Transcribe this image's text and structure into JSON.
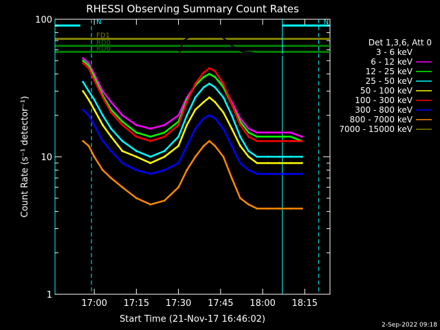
{
  "chart_data": {
    "type": "line",
    "title": "RHESSI Observing Summary Count Rates",
    "xlabel": "Start Time (21-Nov-17 16:46:02)",
    "ylabel": "Count Rate (s⁻¹ detector⁻¹)",
    "yscale": "log",
    "ylim": [
      1,
      100
    ],
    "xlim_minutes": [
      -14,
      84
    ],
    "x_ticks": [
      {
        "t": 0,
        "label": "17:00"
      },
      {
        "t": 15,
        "label": "17:15"
      },
      {
        "t": 30,
        "label": "17:30"
      },
      {
        "t": 45,
        "label": "17:45"
      },
      {
        "t": 60,
        "label": "18:00"
      },
      {
        "t": 75,
        "label": "18:15"
      }
    ],
    "y_ticks": [
      {
        "v": 1,
        "label": "1"
      },
      {
        "v": 10,
        "label": "10"
      },
      {
        "v": 100,
        "label": "100"
      }
    ],
    "timestamp": "2-Sep-2022 09:18",
    "legend_header": "Det 1,3,6, Att 0",
    "legend_position": "right",
    "series": [
      {
        "name": "3 - 6 keV",
        "color": "#000000",
        "t": [
          -4,
          -2,
          0,
          3,
          6,
          10,
          15,
          20,
          25,
          30,
          30.5,
          32,
          35,
          38,
          41,
          44,
          47,
          50,
          53,
          56,
          60,
          65,
          70,
          74
        ],
        "values": [
          45,
          42,
          38,
          30,
          30,
          28,
          27,
          27,
          27,
          28,
          60,
          70,
          78,
          82,
          82,
          80,
          70,
          62,
          58,
          57,
          55,
          55,
          55,
          55
        ]
      },
      {
        "name": "6 - 12 keV",
        "color": "#ff00ff",
        "t": [
          -4,
          -2,
          0,
          3,
          6,
          10,
          15,
          20,
          25,
          30,
          33,
          36,
          39,
          41,
          43,
          46,
          49,
          52,
          55,
          58,
          62,
          66,
          70,
          74
        ],
        "values": [
          52,
          48,
          40,
          30,
          25,
          20,
          17,
          16,
          17,
          20,
          27,
          33,
          38,
          40,
          38,
          33,
          25,
          19,
          16,
          15,
          15,
          15,
          15,
          14
        ]
      },
      {
        "name": "12 - 25 keV",
        "color": "#00ff00",
        "t": [
          -4,
          -2,
          0,
          3,
          6,
          10,
          15,
          20,
          25,
          30,
          33,
          36,
          39,
          41,
          43,
          46,
          49,
          52,
          55,
          58,
          62,
          66,
          70,
          74
        ],
        "values": [
          50,
          46,
          38,
          28,
          22,
          18,
          15,
          14,
          15,
          18,
          26,
          33,
          38,
          40,
          38,
          32,
          24,
          18,
          15,
          14,
          14,
          14,
          14,
          13
        ]
      },
      {
        "name": "25 - 50 keV",
        "color": "#00ffff",
        "t": [
          -4,
          -2,
          0,
          3,
          6,
          10,
          15,
          20,
          25,
          30,
          33,
          36,
          39,
          41,
          43,
          46,
          49,
          52,
          55,
          58,
          62,
          66,
          70,
          74
        ],
        "values": [
          35,
          30,
          26,
          20,
          16,
          13,
          11,
          10,
          11,
          14,
          20,
          27,
          32,
          34,
          32,
          27,
          20,
          14,
          11,
          10,
          10,
          10,
          10,
          10
        ]
      },
      {
        "name": "50 - 100 keV",
        "color": "#ffff00",
        "t": [
          -4,
          -2,
          0,
          3,
          6,
          10,
          15,
          20,
          25,
          30,
          33,
          36,
          39,
          41,
          43,
          46,
          49,
          52,
          55,
          58,
          62,
          66,
          70,
          74
        ],
        "values": [
          30,
          26,
          22,
          17,
          14,
          11,
          10,
          9,
          10,
          12,
          17,
          22,
          25,
          27,
          25,
          21,
          16,
          12,
          10,
          9,
          9,
          9,
          9,
          9
        ]
      },
      {
        "name": "100 - 300 keV",
        "color": "#ff0000",
        "t": [
          -4,
          -2,
          0,
          3,
          6,
          10,
          15,
          20,
          25,
          30,
          33,
          36,
          39,
          41,
          43,
          46,
          49,
          52,
          55,
          58,
          62,
          66,
          70,
          74
        ],
        "values": [
          48,
          44,
          36,
          27,
          21,
          17,
          14,
          13,
          14,
          17,
          25,
          34,
          41,
          44,
          42,
          34,
          24,
          17,
          14,
          13,
          13,
          13,
          13,
          13
        ]
      },
      {
        "name": "300 - 800 keV",
        "color": "#0000ff",
        "t": [
          -4,
          -2,
          0,
          3,
          6,
          10,
          15,
          20,
          25,
          30,
          33,
          36,
          39,
          41,
          43,
          46,
          49,
          52,
          55,
          58,
          62,
          66,
          70,
          74
        ],
        "values": [
          22,
          20,
          17,
          13,
          11,
          9,
          8,
          7.5,
          8,
          9,
          12,
          16,
          19,
          20,
          19,
          16,
          12,
          9,
          8,
          7.5,
          7.5,
          7.5,
          7.5,
          7.5
        ]
      },
      {
        "name": "800 - 7000 keV",
        "color": "#ff8800",
        "t": [
          -4,
          -2,
          0,
          3,
          6,
          10,
          15,
          20,
          25,
          30,
          33,
          36,
          39,
          41,
          43,
          46,
          49,
          52,
          55,
          58,
          62,
          66,
          70,
          74
        ],
        "values": [
          13,
          12,
          10,
          8,
          7,
          6,
          5,
          4.5,
          4.8,
          6,
          8,
          10,
          12,
          13,
          12,
          10,
          7,
          5,
          4.5,
          4.2,
          4.2,
          4.2,
          4.2,
          4.2
        ]
      },
      {
        "name": "7000 - 15000 keV",
        "color": "#808000",
        "t": [],
        "values": []
      }
    ],
    "annotations": [
      {
        "label": "N",
        "color": "#00ffff",
        "t_start": -14,
        "t_end": -5,
        "level": 90
      },
      {
        "label": "N",
        "color": "#00ffff",
        "t_start": 67,
        "t_end": 84,
        "level": 90
      },
      {
        "label": "FD1",
        "color": "#808000",
        "t_start": -14,
        "t_end": 84,
        "level": 72
      },
      {
        "label": "RD0",
        "color": "#008000",
        "t_start": -14,
        "t_end": 84,
        "level": 64
      },
      {
        "label": "RD6",
        "color": "#008000",
        "t_start": -14,
        "t_end": 84,
        "level": 58
      }
    ]
  }
}
